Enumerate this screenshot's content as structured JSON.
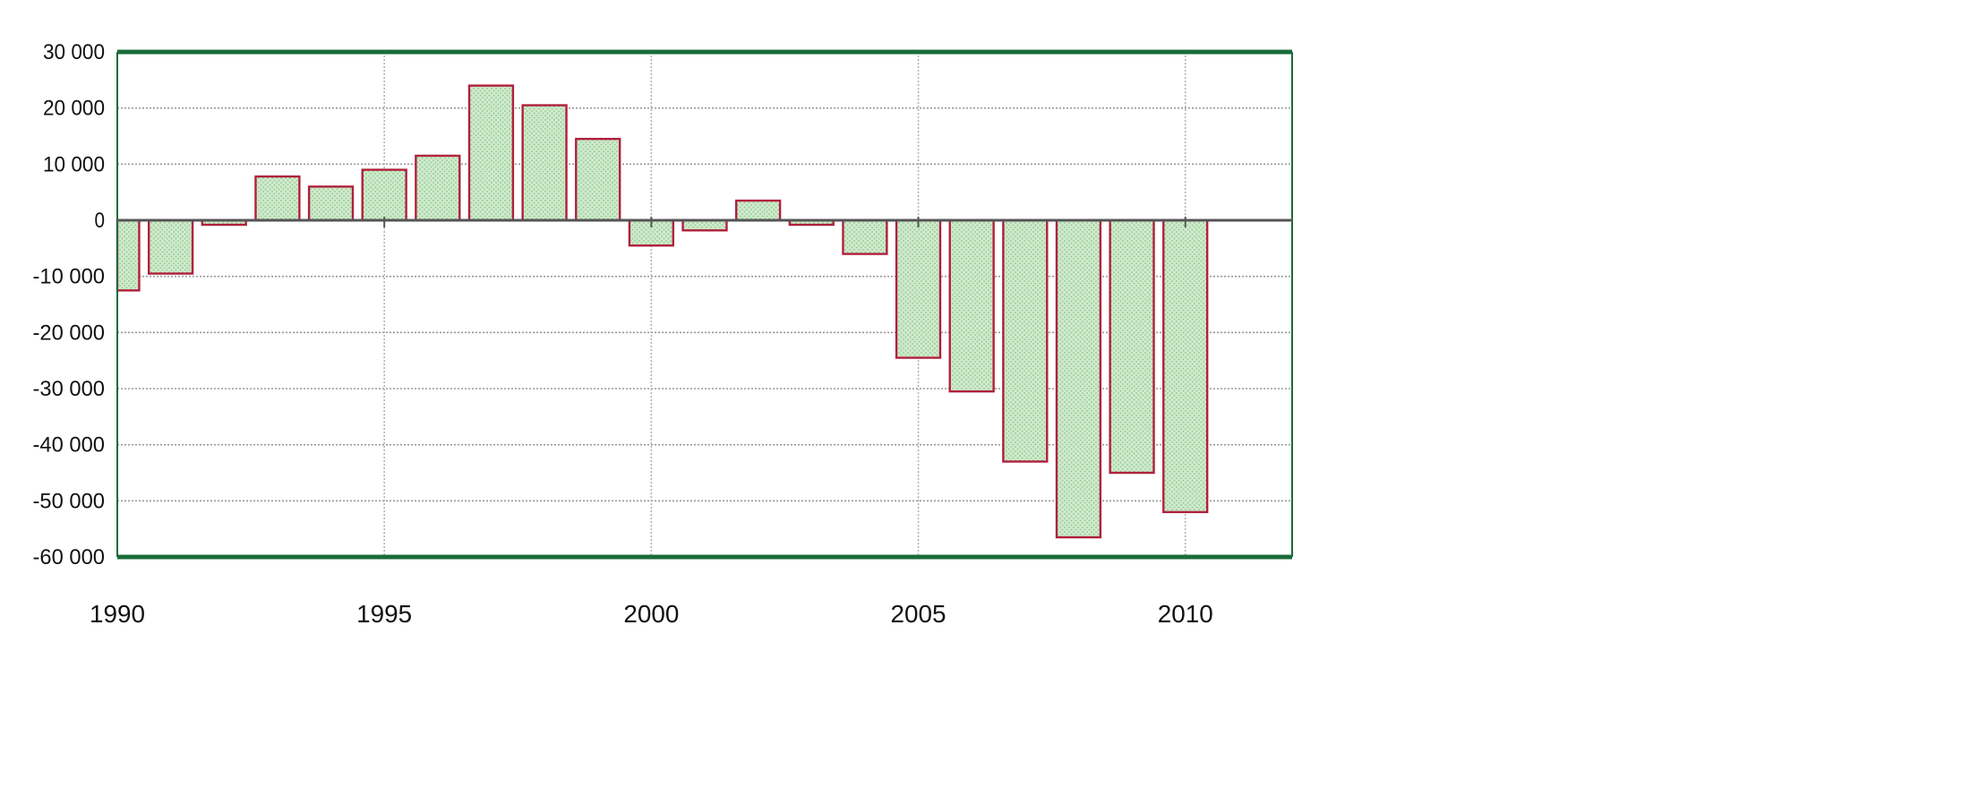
{
  "chart_data": {
    "type": "bar",
    "title": "",
    "xlabel": "",
    "ylabel": "",
    "x_range": [
      1990,
      2012
    ],
    "ylim": [
      -60000,
      30000
    ],
    "grid": true,
    "legend": "none",
    "xticks": [
      {
        "value": 1990,
        "label": "1990"
      },
      {
        "value": 1995,
        "label": "1995"
      },
      {
        "value": 2000,
        "label": "2000"
      },
      {
        "value": 2005,
        "label": "2005"
      },
      {
        "value": 2010,
        "label": "2010"
      }
    ],
    "yticks": [
      {
        "value": 30000,
        "label": "30 000"
      },
      {
        "value": 20000,
        "label": "20 000"
      },
      {
        "value": 10000,
        "label": "10 000"
      },
      {
        "value": 0,
        "label": "0"
      },
      {
        "value": -10000,
        "label": "-10 000"
      },
      {
        "value": -20000,
        "label": "-20 000"
      },
      {
        "value": -30000,
        "label": "-30 000"
      },
      {
        "value": -40000,
        "label": "-40 000"
      },
      {
        "value": -50000,
        "label": "-50 000"
      },
      {
        "value": -60000,
        "label": "-60 000"
      }
    ],
    "x": [
      1990,
      1991,
      1992,
      1993,
      1994,
      1995,
      1996,
      1997,
      1998,
      1999,
      2000,
      2001,
      2002,
      2003,
      2004,
      2005,
      2006,
      2007,
      2008,
      2009,
      2010
    ],
    "values": [
      -12500,
      -9500,
      -800,
      7800,
      6000,
      9000,
      11500,
      24000,
      20500,
      14500,
      -4500,
      -1800,
      3500,
      -800,
      -6000,
      -24500,
      -30500,
      -43000,
      -56500,
      -45000,
      -52000
    ],
    "colors": {
      "bar_fill": "#cfeacc",
      "bar_border": "#b0203c",
      "frame": "#1a6b3a",
      "zero_line": "#555555",
      "grid": "#9a9a9a"
    }
  }
}
